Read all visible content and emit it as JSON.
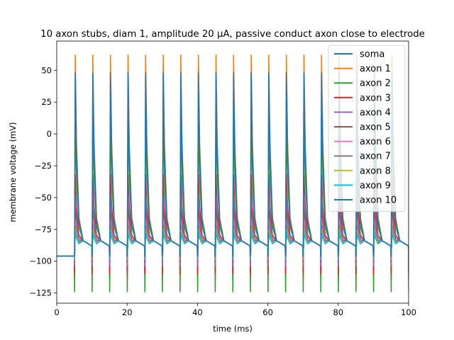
{
  "chart_data": {
    "type": "line",
    "title": "10 axon stubs, diam 1, amplitude 20 µA, passive conduct axon close to electrode",
    "xlabel": "time (ms)",
    "ylabel": "membrane voltage (mV)",
    "xlim": [
      0,
      100
    ],
    "ylim": [
      -133,
      73
    ],
    "xticks": [
      0,
      20,
      40,
      60,
      80,
      100
    ],
    "xtick_labels": [
      "0",
      "20",
      "40",
      "60",
      "80",
      "100"
    ],
    "yticks": [
      -125,
      -100,
      -75,
      -50,
      -25,
      0,
      25,
      50
    ],
    "ytick_labels": [
      "−125",
      "−100",
      "−75",
      "−50",
      "−25",
      "0",
      "25",
      "50"
    ],
    "grid": false,
    "legend_position": "top-right",
    "resting_potential": -96,
    "stimulus_onset": 5,
    "stimulus_period": 5,
    "series": [
      {
        "name": "soma",
        "color": "#1f77b4",
        "peak": -76,
        "trough": -96,
        "decay": -88
      },
      {
        "name": "axon 1",
        "color": "#ff7f0e",
        "peak": 62,
        "trough": -115,
        "decay": -88
      },
      {
        "name": "axon 2",
        "color": "#2ca02c",
        "peak": 14,
        "trough": -124,
        "decay": -88
      },
      {
        "name": "axon 3",
        "color": "#d62728",
        "peak": -32,
        "trough": -110,
        "decay": -88
      },
      {
        "name": "axon 4",
        "color": "#9467bd",
        "peak": -48,
        "trough": -104,
        "decay": -88
      },
      {
        "name": "axon 5",
        "color": "#8c564b",
        "peak": -60,
        "trough": -100,
        "decay": -88
      },
      {
        "name": "axon 6",
        "color": "#e377c2",
        "peak": -67,
        "trough": -99,
        "decay": -88
      },
      {
        "name": "axon 7",
        "color": "#7f7f7f",
        "peak": -72,
        "trough": -98,
        "decay": -88
      },
      {
        "name": "axon 8",
        "color": "#bcbd22",
        "peak": -75,
        "trough": -97,
        "decay": -88
      },
      {
        "name": "axon 9",
        "color": "#17becf",
        "peak": -77,
        "trough": -97,
        "decay": -88
      },
      {
        "name": "axon 10",
        "color": "#1f77b4",
        "peak": 48,
        "trough": -96,
        "decay": -88
      }
    ]
  }
}
